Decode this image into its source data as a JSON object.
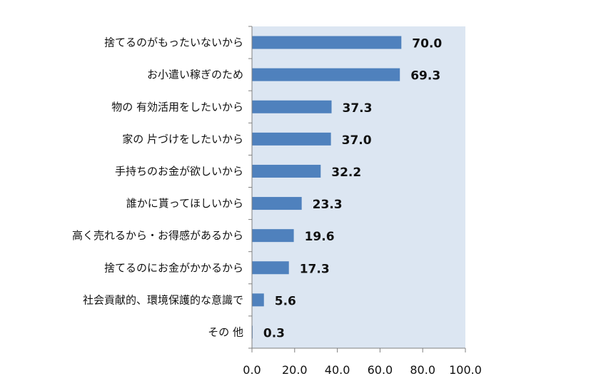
{
  "chart_data": {
    "type": "bar",
    "orientation": "horizontal",
    "categories": [
      "捨てるのがもったいないから",
      "お小遣い稼ぎのため",
      "物の 有効活用をしたいから",
      "家の 片づけをしたいから",
      "手持ちのお金が欲しいから",
      "誰かに貰ってほしいから",
      "高く売れるから・お得感があるから",
      "捨てるのにお金がかかるから",
      "社会貢献的、環境保護的な意識で",
      "その 他"
    ],
    "values": [
      70.0,
      69.3,
      37.3,
      37.0,
      32.2,
      23.3,
      19.6,
      17.3,
      5.6,
      0.3
    ],
    "value_labels": [
      "70.0",
      "69.3",
      "37.3",
      "37.0",
      "32.2",
      "23.3",
      "19.6",
      "17.3",
      "5.6",
      "0.3"
    ],
    "xlim": [
      0,
      100
    ],
    "x_ticks": [
      "0.0",
      "20.0",
      "40.0",
      "60.0",
      "80.0",
      "100.0"
    ],
    "title": "",
    "xlabel": "",
    "ylabel": "",
    "grid": false,
    "legend": "none",
    "colors": {
      "bar": "#4F81BD",
      "plot_background": "#DCE6F2",
      "axis": "#808080",
      "text": "#111111"
    }
  }
}
